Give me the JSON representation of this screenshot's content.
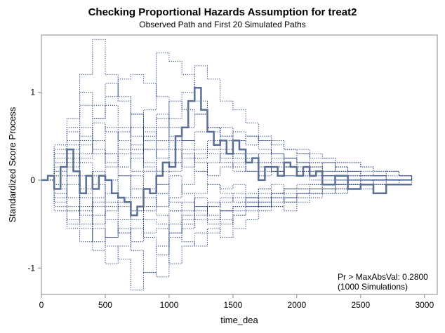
{
  "chart_data": {
    "type": "line",
    "title": "Checking Proportional Hazards Assumption for treat2",
    "subtitle": "Observed Path and First 20 Simulated Paths",
    "xlabel": "time_dea",
    "ylabel": "Standardized Score Process",
    "xlim": [
      0,
      3100
    ],
    "ylim": [
      -1.3,
      1.65
    ],
    "xticks": [
      0,
      500,
      1000,
      1500,
      2000,
      2500,
      3000
    ],
    "yticks": [
      -1,
      0,
      1
    ],
    "grid": false,
    "inset_text": [
      "Pr > MaxAbsVal: 0.2800",
      "(1000 Simulations)"
    ],
    "colors": {
      "observed": "#5a6f94",
      "simulated": "#1f3a7a"
    },
    "observed_path": {
      "name": "Observed Path",
      "x": [
        0,
        50,
        100,
        150,
        200,
        250,
        300,
        350,
        400,
        450,
        500,
        550,
        600,
        650,
        700,
        750,
        800,
        850,
        900,
        950,
        1000,
        1050,
        1100,
        1150,
        1200,
        1250,
        1300,
        1350,
        1400,
        1450,
        1500,
        1550,
        1600,
        1650,
        1700,
        1750,
        1800,
        1850,
        1900,
        1950,
        2000,
        2050,
        2100,
        2150,
        2200,
        2300,
        2400,
        2500,
        2600,
        2700,
        2800,
        2900
      ],
      "y": [
        0.0,
        0.05,
        -0.1,
        0.15,
        0.35,
        0.1,
        -0.15,
        0.05,
        -0.1,
        0.05,
        0.0,
        -0.15,
        -0.2,
        -0.25,
        -0.4,
        -0.3,
        -0.1,
        -0.15,
        0.05,
        0.2,
        0.15,
        0.5,
        0.6,
        0.9,
        1.05,
        0.8,
        0.55,
        0.4,
        0.45,
        0.3,
        0.45,
        0.35,
        0.2,
        0.25,
        0.0,
        0.15,
        0.15,
        0.05,
        0.2,
        0.15,
        0.05,
        0.15,
        0.05,
        0.1,
        -0.05,
        0.05,
        -0.1,
        -0.05,
        -0.15,
        -0.05,
        -0.05,
        -0.05
      ]
    },
    "simulated_paths": {
      "name": "Simulated Paths",
      "x": [
        0,
        100,
        200,
        300,
        400,
        500,
        600,
        700,
        800,
        900,
        1000,
        1100,
        1200,
        1300,
        1400,
        1500,
        1600,
        1700,
        1800,
        1900,
        2000,
        2100,
        2200,
        2300,
        2400,
        2500,
        2600,
        2700,
        2800,
        2900
      ],
      "series": [
        [
          0,
          0.4,
          0.7,
          1.2,
          1.6,
          1.2,
          0.95,
          0.75,
          0.6,
          0.7,
          0.9,
          0.8,
          0.75,
          0.6,
          0.5,
          0.55,
          0.5,
          0.45,
          0.4,
          0.35,
          0.3,
          0.25,
          0.25,
          0.2,
          0.2,
          0.15,
          0.1,
          0.1,
          0.05,
          0.0
        ],
        [
          0,
          -0.3,
          -0.55,
          -0.7,
          -0.55,
          -0.75,
          -0.9,
          -1.25,
          -1.05,
          -0.75,
          -0.5,
          -0.7,
          -0.75,
          -0.6,
          -0.45,
          -0.55,
          -0.45,
          -0.35,
          -0.3,
          -0.35,
          -0.25,
          -0.2,
          -0.15,
          -0.15,
          -0.1,
          -0.1,
          -0.05,
          -0.05,
          -0.05,
          0.0
        ],
        [
          0,
          0.2,
          0.6,
          1.0,
          0.85,
          1.1,
          0.9,
          0.5,
          0.8,
          1.45,
          1.35,
          1.2,
          0.9,
          0.6,
          0.45,
          0.3,
          0.25,
          0.3,
          0.2,
          0.25,
          0.15,
          0.2,
          0.1,
          0.15,
          0.1,
          0.05,
          0.05,
          0.1,
          0.05,
          0.0
        ],
        [
          0,
          -0.2,
          -0.45,
          -0.5,
          -0.8,
          -0.65,
          -0.55,
          -0.8,
          -1.05,
          -1.1,
          -0.65,
          -0.55,
          -0.45,
          -0.5,
          -0.35,
          -0.4,
          -0.3,
          -0.25,
          -0.2,
          -0.25,
          -0.15,
          -0.15,
          -0.1,
          -0.1,
          -0.1,
          -0.05,
          -0.05,
          -0.05,
          0.0,
          0.0
        ],
        [
          0,
          0.1,
          0.4,
          0.45,
          0.65,
          0.55,
          0.3,
          0.1,
          0.35,
          0.45,
          0.7,
          1.0,
          1.3,
          1.15,
          0.9,
          0.8,
          0.65,
          0.45,
          0.3,
          0.25,
          0.2,
          0.15,
          0.2,
          0.1,
          0.1,
          0.05,
          0.05,
          0.0,
          0.0,
          0.0
        ],
        [
          0,
          -0.15,
          0.05,
          -0.35,
          -0.25,
          -0.65,
          -0.45,
          -0.35,
          -0.6,
          -0.55,
          -0.95,
          -0.75,
          -0.6,
          -0.55,
          -0.65,
          -0.4,
          -0.35,
          -0.3,
          -0.25,
          -0.2,
          -0.2,
          -0.15,
          -0.1,
          -0.15,
          -0.1,
          -0.05,
          -0.05,
          0.0,
          0.0,
          0.0
        ],
        [
          0,
          0.3,
          0.35,
          0.6,
          0.45,
          0.2,
          0.55,
          0.75,
          0.35,
          0.1,
          0.2,
          0.45,
          0.55,
          0.6,
          0.5,
          0.45,
          0.5,
          0.35,
          0.3,
          0.25,
          0.3,
          0.2,
          0.2,
          0.15,
          0.1,
          0.1,
          0.05,
          0.05,
          0.05,
          0.0
        ],
        [
          0,
          -0.05,
          0.2,
          -0.1,
          0.1,
          -0.25,
          0.05,
          -0.2,
          -0.35,
          -0.15,
          0.05,
          -0.15,
          -0.3,
          -0.45,
          -0.35,
          -0.3,
          -0.25,
          -0.2,
          -0.3,
          -0.2,
          -0.15,
          -0.1,
          -0.1,
          -0.05,
          -0.05,
          -0.05,
          0.0,
          0.0,
          0.0,
          0.0
        ],
        [
          0,
          0.15,
          0.45,
          0.85,
          0.7,
          0.95,
          1.15,
          1.2,
          1.1,
          0.95,
          0.6,
          0.45,
          0.35,
          0.3,
          0.25,
          0.3,
          0.2,
          0.15,
          0.1,
          0.15,
          0.1,
          0.1,
          0.05,
          0.05,
          0.05,
          0.0,
          0.0,
          0.0,
          0.0,
          0.0
        ],
        [
          0,
          -0.25,
          -0.35,
          -0.55,
          -0.4,
          -0.3,
          -0.6,
          -0.7,
          -0.45,
          -0.5,
          -0.35,
          -0.25,
          -0.35,
          -0.3,
          -0.2,
          -0.25,
          -0.2,
          -0.15,
          -0.15,
          -0.1,
          -0.1,
          -0.1,
          -0.05,
          -0.05,
          -0.05,
          0.0,
          0.0,
          0.0,
          0.0,
          0.0
        ],
        [
          0,
          0.25,
          0.15,
          0.4,
          0.3,
          0.6,
          0.45,
          0.3,
          0.55,
          0.25,
          0.45,
          0.6,
          0.75,
          0.55,
          0.6,
          0.45,
          0.4,
          0.5,
          0.45,
          0.35,
          0.35,
          0.3,
          0.25,
          0.2,
          0.2,
          0.15,
          0.1,
          0.1,
          0.05,
          0.0
        ],
        [
          0,
          -0.1,
          -0.2,
          0.05,
          -0.3,
          -0.15,
          -0.2,
          0.05,
          -0.1,
          -0.3,
          -0.2,
          -0.05,
          0.1,
          -0.05,
          -0.15,
          -0.2,
          -0.3,
          -0.2,
          -0.15,
          -0.25,
          -0.2,
          -0.15,
          -0.15,
          -0.1,
          -0.1,
          -0.05,
          -0.05,
          0.0,
          0.0,
          0.0
        ],
        [
          0,
          0.35,
          0.55,
          0.3,
          0.7,
          0.85,
          0.6,
          0.4,
          0.2,
          0.35,
          0.2,
          0.15,
          0.3,
          0.45,
          0.35,
          0.25,
          0.3,
          0.2,
          0.25,
          0.15,
          0.2,
          0.15,
          0.1,
          0.1,
          0.05,
          0.05,
          0.05,
          0.0,
          0.0,
          0.0
        ],
        [
          0,
          -0.35,
          -0.5,
          -0.3,
          -0.7,
          -0.95,
          -0.75,
          -0.55,
          -0.65,
          -0.85,
          -0.6,
          -0.4,
          -0.2,
          -0.3,
          -0.25,
          -0.15,
          -0.2,
          -0.25,
          -0.15,
          -0.15,
          -0.1,
          -0.1,
          -0.05,
          -0.05,
          -0.05,
          0.0,
          0.0,
          0.0,
          0.0,
          0.0
        ],
        [
          0,
          0.05,
          0.3,
          0.2,
          0.05,
          0.3,
          0.15,
          0.35,
          0.5,
          0.6,
          0.35,
          0.25,
          0.1,
          0.2,
          0.3,
          0.15,
          0.1,
          0.2,
          0.1,
          0.15,
          0.05,
          0.1,
          0.05,
          0.05,
          0.0,
          0.0,
          0.0,
          0.0,
          0.0,
          0.0
        ],
        [
          0,
          -0.05,
          -0.3,
          -0.2,
          -0.5,
          -0.35,
          -0.25,
          -0.45,
          -0.3,
          -0.15,
          -0.35,
          -0.5,
          -0.4,
          -0.25,
          -0.35,
          -0.3,
          -0.2,
          -0.1,
          -0.15,
          -0.1,
          -0.1,
          -0.05,
          -0.05,
          -0.05,
          0.0,
          0.0,
          0.0,
          0.0,
          0.0,
          0.0
        ],
        [
          0,
          0.2,
          0.05,
          0.25,
          0.45,
          0.3,
          0.05,
          0.25,
          0.15,
          -0.05,
          0.1,
          0.3,
          0.2,
          0.05,
          0.15,
          0.2,
          0.1,
          0.05,
          0.1,
          0.05,
          0.05,
          0.0,
          0.05,
          0.0,
          0.0,
          0.0,
          0.0,
          0.0,
          0.0,
          0.0
        ],
        [
          0,
          -0.2,
          -0.05,
          -0.4,
          -0.2,
          0.0,
          -0.3,
          -0.1,
          0.1,
          -0.05,
          -0.25,
          -0.35,
          -0.15,
          -0.05,
          -0.1,
          -0.05,
          -0.15,
          -0.1,
          -0.05,
          -0.1,
          -0.05,
          -0.05,
          0.0,
          0.0,
          0.0,
          0.0,
          0.0,
          0.0,
          0.0,
          0.0
        ],
        [
          0,
          0.1,
          0.25,
          0.5,
          0.35,
          0.15,
          0.35,
          0.6,
          0.45,
          0.75,
          0.5,
          0.35,
          0.25,
          0.35,
          0.2,
          0.1,
          0.2,
          0.1,
          0.15,
          0.05,
          0.1,
          0.05,
          0.05,
          0.0,
          0.0,
          0.0,
          0.0,
          0.0,
          0.0,
          0.0
        ],
        [
          0,
          -0.15,
          -0.35,
          -0.15,
          -0.05,
          -0.45,
          -0.6,
          -0.35,
          -0.2,
          -0.4,
          -0.6,
          -0.45,
          -0.3,
          -0.4,
          -0.5,
          -0.35,
          -0.25,
          -0.3,
          -0.2,
          -0.2,
          -0.15,
          -0.1,
          -0.1,
          -0.05,
          -0.05,
          -0.05,
          0.0,
          0.0,
          0.0,
          0.0
        ]
      ]
    }
  }
}
